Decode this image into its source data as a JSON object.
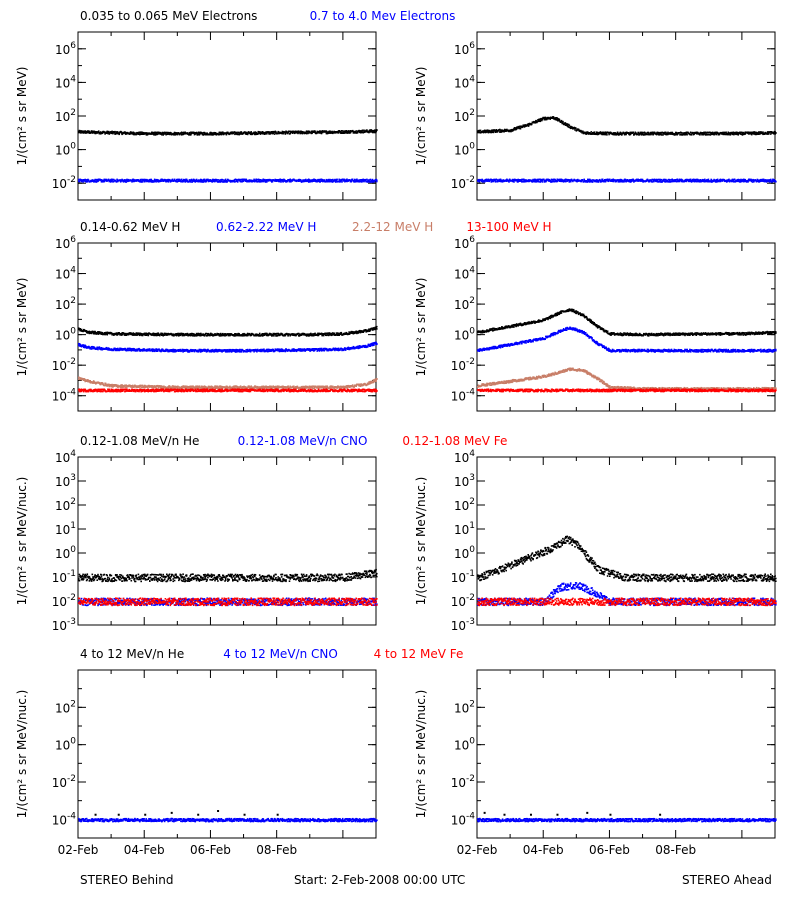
{
  "footer": {
    "left": "STEREO Behind",
    "center": "Start:  2-Feb-2008 00:00 UTC",
    "right": "STEREO Ahead"
  },
  "x_ticks": [
    "02-Feb",
    "04-Feb",
    "06-Feb",
    "08-Feb"
  ],
  "colors": {
    "black": "#000000",
    "blue": "#0000ff",
    "tan": "#c87e68",
    "red": "#ff0000"
  },
  "chart_data": [
    {
      "type": "scatter",
      "row": 0,
      "headers": [
        {
          "text": "0.035 to 0.065 MeV Electrons",
          "color": "#000000"
        },
        {
          "text": "0.7 to 4.0 Mev Electrons",
          "color": "#0000ff"
        }
      ],
      "ylabel": "1/(cm² s sr MeV)",
      "ylim_exp": [
        -3,
        7
      ],
      "yticks": [
        {
          "exp": -2,
          "label": "10-2"
        },
        {
          "exp": 0,
          "label": "10 0"
        },
        {
          "exp": 2,
          "label": "10 2"
        },
        {
          "exp": 4,
          "label": "10 4"
        },
        {
          "exp": 6,
          "label": "10 6"
        }
      ],
      "panels": [
        {
          "side": "behind",
          "series": [
            {
              "name": "0.035 to 0.065 MeV Electrons",
              "color": "#000000",
              "x": [
                0,
                2,
                4,
                6,
                8,
                9
              ],
              "log10_y": [
                1.1,
                1.0,
                1.0,
                1.05,
                1.1,
                1.15
              ]
            },
            {
              "name": "0.7 to 4.0 Mev Electrons",
              "color": "#0000ff",
              "x": [
                0,
                2,
                4,
                6,
                8,
                9
              ],
              "log10_y": [
                -1.8,
                -1.8,
                -1.8,
                -1.8,
                -1.8,
                -1.8
              ]
            }
          ]
        },
        {
          "side": "ahead",
          "series": [
            {
              "name": "0.035 to 0.065 MeV Electrons",
              "color": "#000000",
              "x": [
                0,
                1,
                1.5,
                2,
                2.3,
                2.8,
                3.2,
                4,
                6,
                8,
                9
              ],
              "log10_y": [
                1.1,
                1.2,
                1.5,
                1.9,
                1.95,
                1.4,
                1.05,
                1.0,
                1.0,
                1.0,
                1.05
              ]
            },
            {
              "name": "0.7 to 4.0 Mev Electrons",
              "color": "#0000ff",
              "x": [
                0,
                2,
                4,
                6,
                8,
                9
              ],
              "log10_y": [
                -1.8,
                -1.8,
                -1.8,
                -1.8,
                -1.8,
                -1.8
              ]
            }
          ]
        }
      ]
    },
    {
      "type": "scatter",
      "row": 1,
      "headers": [
        {
          "text": "0.14-0.62 MeV H",
          "color": "#000000"
        },
        {
          "text": "0.62-2.22 MeV H",
          "color": "#0000ff"
        },
        {
          "text": "2.2-12 MeV H",
          "color": "#c87e68"
        },
        {
          "text": "13-100 MeV H",
          "color": "#ff0000"
        }
      ],
      "ylabel": "1/(cm² s sr MeV)",
      "ylim_exp": [
        -5,
        6
      ],
      "yticks": [
        {
          "exp": -4,
          "label": "10-4"
        },
        {
          "exp": -2,
          "label": "10-2"
        },
        {
          "exp": 0,
          "label": "10 0"
        },
        {
          "exp": 2,
          "label": "10 2"
        },
        {
          "exp": 4,
          "label": "10 4"
        },
        {
          "exp": 6,
          "label": "10 6"
        }
      ],
      "panels": [
        {
          "side": "behind",
          "series": [
            {
              "name": "0.14-0.62 MeV H",
              "color": "#000000",
              "x": [
                0,
                0.3,
                1,
                3,
                5,
                7,
                8,
                8.7,
                9
              ],
              "log10_y": [
                0.4,
                0.2,
                0.1,
                0.05,
                0.05,
                0.05,
                0.1,
                0.3,
                0.5
              ]
            },
            {
              "name": "0.62-2.22 MeV H",
              "color": "#0000ff",
              "x": [
                0,
                0.3,
                1,
                3,
                5,
                7,
                8,
                8.7,
                9
              ],
              "log10_y": [
                -0.6,
                -0.8,
                -0.9,
                -1.0,
                -1.0,
                -0.95,
                -0.9,
                -0.7,
                -0.5
              ]
            },
            {
              "name": "2.2-12 MeV H",
              "color": "#c87e68",
              "x": [
                0,
                0.3,
                1,
                3,
                5,
                7,
                8,
                8.7,
                9
              ],
              "log10_y": [
                -2.8,
                -3.0,
                -3.3,
                -3.4,
                -3.4,
                -3.4,
                -3.4,
                -3.2,
                -2.9
              ]
            },
            {
              "name": "13-100 MeV H",
              "color": "#ff0000",
              "x": [
                0,
                2,
                4,
                6,
                8,
                9
              ],
              "log10_y": [
                -3.6,
                -3.6,
                -3.6,
                -3.6,
                -3.6,
                -3.6
              ]
            }
          ]
        },
        {
          "side": "ahead",
          "series": [
            {
              "name": "0.14-0.62 MeV H",
              "color": "#000000",
              "x": [
                0,
                1,
                2,
                2.5,
                2.8,
                3.2,
                3.6,
                4,
                5,
                7,
                8,
                9
              ],
              "log10_y": [
                0.2,
                0.6,
                1.0,
                1.5,
                1.7,
                1.3,
                0.6,
                0.1,
                0.05,
                0.1,
                0.1,
                0.2
              ]
            },
            {
              "name": "0.62-2.22 MeV H",
              "color": "#0000ff",
              "x": [
                0,
                1,
                2,
                2.5,
                2.8,
                3.2,
                3.6,
                4,
                5,
                7,
                8,
                9
              ],
              "log10_y": [
                -1.0,
                -0.6,
                -0.2,
                0.3,
                0.5,
                0.2,
                -0.5,
                -1.0,
                -1.0,
                -1.0,
                -1.0,
                -1.0
              ]
            },
            {
              "name": "2.2-12 MeV H",
              "color": "#c87e68",
              "x": [
                0,
                1,
                2,
                2.5,
                2.8,
                3.2,
                3.6,
                4,
                5,
                9
              ],
              "log10_y": [
                -3.3,
                -3.0,
                -2.7,
                -2.4,
                -2.2,
                -2.3,
                -2.8,
                -3.4,
                -3.5,
                -3.5
              ]
            },
            {
              "name": "13-100 MeV H",
              "color": "#ff0000",
              "x": [
                0,
                2,
                4,
                6,
                8,
                9
              ],
              "log10_y": [
                -3.6,
                -3.6,
                -3.6,
                -3.6,
                -3.6,
                -3.6
              ]
            }
          ]
        }
      ]
    },
    {
      "type": "scatter",
      "row": 2,
      "headers": [
        {
          "text": "0.12-1.08 MeV/n He",
          "color": "#000000"
        },
        {
          "text": "0.12-1.08 MeV/n CNO",
          "color": "#0000ff"
        },
        {
          "text": "0.12-1.08 MeV Fe",
          "color": "#ff0000"
        }
      ],
      "ylabel": "1/(cm² s sr MeV/nuc.)",
      "ylim_exp": [
        -3,
        4
      ],
      "yticks": [
        {
          "exp": -3,
          "label": "10-3"
        },
        {
          "exp": -2,
          "label": "10-2"
        },
        {
          "exp": -1,
          "label": "10-1"
        },
        {
          "exp": 0,
          "label": "10 0"
        },
        {
          "exp": 1,
          "label": "10 1"
        },
        {
          "exp": 2,
          "label": "10 2"
        },
        {
          "exp": 3,
          "label": "10 3"
        },
        {
          "exp": 4,
          "label": "10 4"
        }
      ],
      "panels": [
        {
          "side": "behind",
          "series": [
            {
              "name": "0.12-1.08 MeV/n He",
              "color": "#000000",
              "x": [
                0,
                2,
                4,
                6,
                8,
                9
              ],
              "log10_y": [
                -1.0,
                -1.0,
                -1.0,
                -1.0,
                -1.0,
                -0.8
              ]
            },
            {
              "name": "0.12-1.08 MeV/n CNO",
              "color": "#0000ff",
              "x": [
                0,
                2,
                4,
                6,
                8,
                9
              ],
              "log10_y": [
                -2.0,
                -2.0,
                -2.0,
                -2.0,
                -2.0,
                -2.0
              ]
            },
            {
              "name": "0.12-1.08 MeV Fe",
              "color": "#ff0000",
              "x": [
                0,
                2,
                4,
                6,
                8,
                9
              ],
              "log10_y": [
                -2.0,
                -2.0,
                -2.0,
                -2.0,
                -2.0,
                -2.0
              ]
            }
          ]
        },
        {
          "side": "ahead",
          "series": [
            {
              "name": "0.12-1.08 MeV/n He",
              "color": "#000000",
              "x": [
                0,
                0.8,
                1.5,
                2.2,
                2.7,
                3.0,
                3.3,
                3.7,
                4.5,
                6,
                8,
                9
              ],
              "log10_y": [
                -1.0,
                -0.6,
                -0.2,
                0.2,
                0.6,
                0.4,
                -0.1,
                -0.7,
                -1.0,
                -1.0,
                -1.0,
                -1.0
              ]
            },
            {
              "name": "0.12-1.08 MeV/n CNO",
              "color": "#0000ff",
              "x": [
                0,
                2,
                2.5,
                3,
                3.5,
                4,
                6,
                9
              ],
              "log10_y": [
                -2.0,
                -2.0,
                -1.4,
                -1.3,
                -1.6,
                -2.0,
                -2.0,
                -2.0
              ]
            },
            {
              "name": "0.12-1.08 MeV Fe",
              "color": "#ff0000",
              "x": [
                0,
                2,
                4,
                6,
                8,
                9
              ],
              "log10_y": [
                -2.0,
                -2.0,
                -2.0,
                -2.0,
                -2.0,
                -2.0
              ]
            }
          ]
        }
      ]
    },
    {
      "type": "scatter",
      "row": 3,
      "headers": [
        {
          "text": "4 to 12 MeV/n He",
          "color": "#000000"
        },
        {
          "text": "4 to 12 MeV/n CNO",
          "color": "#0000ff"
        },
        {
          "text": "4 to 12 MeV Fe",
          "color": "#ff0000"
        }
      ],
      "ylabel": "1/(cm² s sr MeV/nuc.)",
      "ylim_exp": [
        -5,
        4
      ],
      "yticks": [
        {
          "exp": -4,
          "label": "10-4"
        },
        {
          "exp": -2,
          "label": "10-2"
        },
        {
          "exp": 0,
          "label": "10 0"
        },
        {
          "exp": 2,
          "label": "10 2"
        }
      ],
      "panels": [
        {
          "side": "behind",
          "series": [
            {
              "name": "4 to 12 MeV/n CNO",
              "color": "#0000ff",
              "x": [
                0,
                9
              ],
              "log10_y": [
                -4.0,
                -4.0
              ]
            },
            {
              "name": "4 to 12 MeV/n He",
              "color": "#000000",
              "x": [
                0.5,
                1.2,
                2.0,
                2.8,
                3.6,
                4.2,
                5.0,
                6.0
              ],
              "log10_y": [
                -3.7,
                -3.7,
                -3.7,
                -3.6,
                -3.7,
                -3.5,
                -3.7,
                -3.7
              ]
            }
          ]
        },
        {
          "side": "ahead",
          "series": [
            {
              "name": "4 to 12 MeV/n CNO",
              "color": "#0000ff",
              "x": [
                0,
                9
              ],
              "log10_y": [
                -4.0,
                -4.0
              ]
            },
            {
              "name": "4 to 12 MeV/n He",
              "color": "#000000",
              "x": [
                0.2,
                0.8,
                1.6,
                2.4,
                3.3,
                4.0,
                5.5
              ],
              "log10_y": [
                -3.6,
                -3.7,
                -3.7,
                -3.7,
                -3.6,
                -3.7,
                -3.7
              ]
            }
          ]
        }
      ]
    }
  ]
}
